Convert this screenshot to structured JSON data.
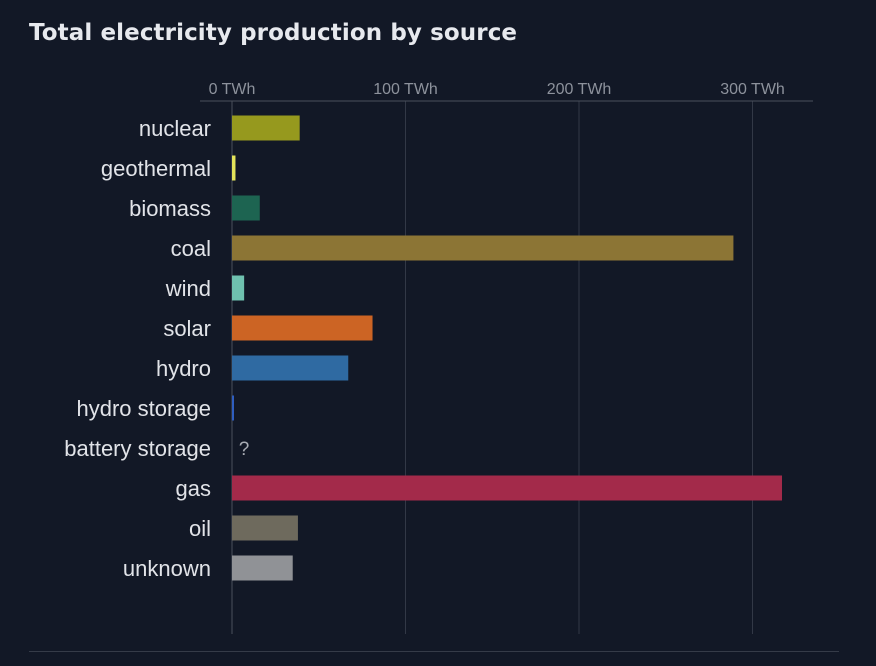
{
  "chart_data": {
    "type": "bar",
    "orientation": "horizontal",
    "title": "Total electricity production by source",
    "unit": "TWh",
    "xlim": [
      0,
      335
    ],
    "ticks": [
      {
        "value": 0,
        "label": "0 TWh"
      },
      {
        "value": 100,
        "label": "100 TWh"
      },
      {
        "value": 200,
        "label": "200 TWh"
      },
      {
        "value": 300,
        "label": "300 TWh"
      }
    ],
    "grid": true,
    "categories": [
      "nuclear",
      "geothermal",
      "biomass",
      "coal",
      "wind",
      "solar",
      "hydro",
      "hydro storage",
      "battery storage",
      "gas",
      "oil",
      "unknown"
    ],
    "values": [
      39,
      2,
      16,
      289,
      7,
      81,
      67,
      1,
      null,
      317,
      38,
      35
    ],
    "colors": [
      "#96991e",
      "#e3e35a",
      "#1d6451",
      "#8c7535",
      "#6fc1af",
      "#cc6424",
      "#2f6aa2",
      "#2f5ec0",
      "#b4b4b4",
      "#a32a4a",
      "#6e6a5d",
      "#909296"
    ],
    "missing_label": "?"
  }
}
